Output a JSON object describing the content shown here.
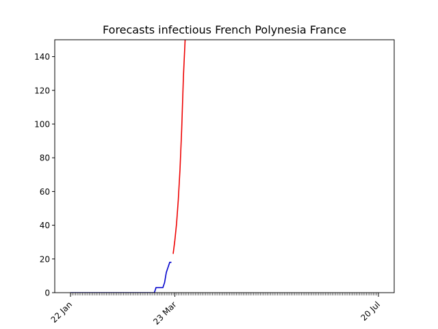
{
  "chart_data": {
    "type": "line",
    "title": "Forecasts infectious French Polynesia France",
    "xlabel": "",
    "ylabel": "",
    "x_tick_labels": [
      "22 Jan",
      "23 Mar",
      "20 Jul"
    ],
    "xlim": [
      "2020-01-22",
      "2020-07-20"
    ],
    "ylim": [
      0,
      150
    ],
    "y_ticks": [
      0,
      20,
      40,
      60,
      80,
      100,
      120,
      140
    ],
    "grid": false,
    "series": [
      {
        "color": "#0000cc",
        "points": [
          [
            "2020-01-22",
            0
          ],
          [
            "2020-02-15",
            0
          ],
          [
            "2020-03-10",
            0
          ],
          [
            "2020-03-11",
            0
          ],
          [
            "2020-03-12",
            3
          ],
          [
            "2020-03-13",
            3
          ],
          [
            "2020-03-14",
            3
          ],
          [
            "2020-03-15",
            3
          ],
          [
            "2020-03-16",
            3
          ],
          [
            "2020-03-17",
            6
          ],
          [
            "2020-03-18",
            12
          ],
          [
            "2020-03-19",
            15
          ],
          [
            "2020-03-20",
            18
          ],
          [
            "2020-03-21",
            18
          ]
        ]
      },
      {
        "color": "#ee0000",
        "points": [
          [
            "2020-03-22",
            23
          ],
          [
            "2020-03-23",
            31
          ],
          [
            "2020-03-24",
            41
          ],
          [
            "2020-03-25",
            55
          ],
          [
            "2020-03-26",
            73
          ],
          [
            "2020-03-27",
            97
          ],
          [
            "2020-03-28",
            128
          ],
          [
            "2020-03-29",
            150
          ]
        ]
      }
    ]
  }
}
